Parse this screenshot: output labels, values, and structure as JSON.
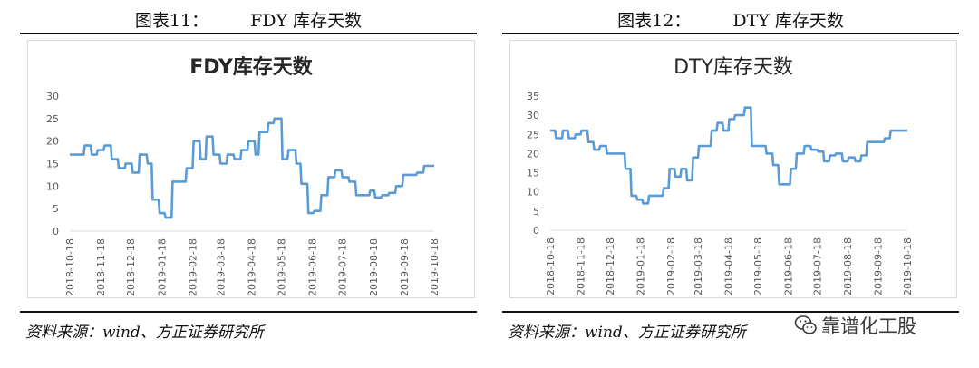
{
  "panels": [
    {
      "fig_label": "图表11：",
      "fig_name": "FDY 库存天数",
      "source": "资料来源：wind、方正证券研究所"
    },
    {
      "fig_label": "图表12：",
      "fig_name": "DTY 库存天数",
      "source": "资料来源：wind、方正证券研究所"
    }
  ],
  "watermark": {
    "text": "靠谱化工股",
    "icon": "wechat-icon"
  },
  "colors": {
    "line": "#5b9bd5",
    "axis_text": "#595959",
    "title": "#262626"
  },
  "chart_data": [
    {
      "type": "line",
      "title": "FDY库存天数",
      "title_bold": true,
      "xlabel": "",
      "ylabel": "",
      "ylim": [
        0,
        30
      ],
      "yticks": [
        0,
        5,
        10,
        15,
        20,
        25,
        30
      ],
      "grid": false,
      "legend": "none",
      "xticks": [
        "2018-10-18",
        "2018-11-18",
        "2018-12-18",
        "2019-01-18",
        "2019-02-18",
        "2019-03-18",
        "2019-04-18",
        "2019-05-18",
        "2019-06-18",
        "2019-07-18",
        "2019-08-18",
        "2019-09-18",
        "2019-10-18"
      ],
      "series": [
        {
          "points": [
            [
              "2018-10-18",
              17
            ],
            [
              "2018-11-01",
              17
            ],
            [
              "2018-11-02",
              19
            ],
            [
              "2018-11-08",
              19
            ],
            [
              "2018-11-09",
              17
            ],
            [
              "2018-11-14",
              17
            ],
            [
              "2018-11-15",
              18
            ],
            [
              "2018-11-21",
              18
            ],
            [
              "2018-11-22",
              19
            ],
            [
              "2018-11-28",
              19
            ],
            [
              "2018-11-29",
              16
            ],
            [
              "2018-12-05",
              16
            ],
            [
              "2018-12-06",
              14
            ],
            [
              "2018-12-12",
              14
            ],
            [
              "2018-12-13",
              15
            ],
            [
              "2018-12-19",
              15
            ],
            [
              "2018-12-20",
              13
            ],
            [
              "2018-12-26",
              13
            ],
            [
              "2018-12-27",
              17
            ],
            [
              "2019-01-03",
              17
            ],
            [
              "2019-01-04",
              15
            ],
            [
              "2019-01-08",
              15
            ],
            [
              "2019-01-09",
              7
            ],
            [
              "2019-01-15",
              7
            ],
            [
              "2019-01-16",
              4
            ],
            [
              "2019-01-21",
              4
            ],
            [
              "2019-01-22",
              3
            ],
            [
              "2019-01-28",
              3
            ],
            [
              "2019-01-29",
              11
            ],
            [
              "2019-02-11",
              11
            ],
            [
              "2019-02-12",
              14
            ],
            [
              "2019-02-18",
              14
            ],
            [
              "2019-02-19",
              20
            ],
            [
              "2019-02-25",
              20
            ],
            [
              "2019-02-26",
              16
            ],
            [
              "2019-03-03",
              16
            ],
            [
              "2019-03-04",
              21
            ],
            [
              "2019-03-10",
              21
            ],
            [
              "2019-03-11",
              17
            ],
            [
              "2019-03-17",
              17
            ],
            [
              "2019-03-18",
              15
            ],
            [
              "2019-03-24",
              15
            ],
            [
              "2019-03-25",
              17
            ],
            [
              "2019-03-31",
              17
            ],
            [
              "2019-04-01",
              16
            ],
            [
              "2019-04-07",
              16
            ],
            [
              "2019-04-08",
              18
            ],
            [
              "2019-04-14",
              18
            ],
            [
              "2019-04-15",
              20
            ],
            [
              "2019-04-21",
              20
            ],
            [
              "2019-04-22",
              17
            ],
            [
              "2019-04-25",
              17
            ],
            [
              "2019-04-26",
              22
            ],
            [
              "2019-05-04",
              22
            ],
            [
              "2019-05-05",
              24
            ],
            [
              "2019-05-10",
              24
            ],
            [
              "2019-05-11",
              25
            ],
            [
              "2019-05-18",
              25
            ],
            [
              "2019-05-19",
              16
            ],
            [
              "2019-05-24",
              16
            ],
            [
              "2019-05-25",
              18
            ],
            [
              "2019-06-01",
              18
            ],
            [
              "2019-06-02",
              15
            ],
            [
              "2019-06-06",
              15
            ],
            [
              "2019-06-07",
              10.5
            ],
            [
              "2019-06-13",
              10.5
            ],
            [
              "2019-06-14",
              4
            ],
            [
              "2019-06-19",
              4
            ],
            [
              "2019-06-20",
              4.5
            ],
            [
              "2019-06-26",
              4.5
            ],
            [
              "2019-06-27",
              8
            ],
            [
              "2019-07-03",
              8
            ],
            [
              "2019-07-04",
              12
            ],
            [
              "2019-07-10",
              12
            ],
            [
              "2019-07-11",
              13.5
            ],
            [
              "2019-07-17",
              13.5
            ],
            [
              "2019-07-18",
              12
            ],
            [
              "2019-07-24",
              12
            ],
            [
              "2019-07-25",
              11
            ],
            [
              "2019-07-31",
              11
            ],
            [
              "2019-08-01",
              8
            ],
            [
              "2019-08-14",
              8
            ],
            [
              "2019-08-15",
              9
            ],
            [
              "2019-08-19",
              9
            ],
            [
              "2019-08-20",
              7.5
            ],
            [
              "2019-08-26",
              7.5
            ],
            [
              "2019-08-27",
              8
            ],
            [
              "2019-09-02",
              8
            ],
            [
              "2019-09-03",
              8.5
            ],
            [
              "2019-09-09",
              8.5
            ],
            [
              "2019-09-10",
              10
            ],
            [
              "2019-09-16",
              10
            ],
            [
              "2019-09-17",
              12.5
            ],
            [
              "2019-09-30",
              12.5
            ],
            [
              "2019-10-01",
              13
            ],
            [
              "2019-10-07",
              13
            ],
            [
              "2019-10-08",
              14.5
            ],
            [
              "2019-10-18",
              14.5
            ]
          ]
        }
      ]
    },
    {
      "type": "line",
      "title": "DTY库存天数",
      "title_bold": false,
      "xlabel": "",
      "ylabel": "",
      "ylim": [
        0,
        35
      ],
      "yticks": [
        0,
        5,
        10,
        15,
        20,
        25,
        30,
        35
      ],
      "grid": false,
      "legend": "none",
      "xticks": [
        "2018-10-18",
        "2018-11-18",
        "2018-12-18",
        "2019-01-18",
        "2019-02-18",
        "2019-03-18",
        "2019-04-18",
        "2019-05-18",
        "2019-06-18",
        "2019-07-18",
        "2019-08-18",
        "2019-09-18",
        "2019-10-18"
      ],
      "series": [
        {
          "points": [
            [
              "2018-10-18",
              26
            ],
            [
              "2018-10-23",
              26
            ],
            [
              "2018-10-24",
              24
            ],
            [
              "2018-10-30",
              24
            ],
            [
              "2018-10-31",
              26
            ],
            [
              "2018-11-05",
              26
            ],
            [
              "2018-11-06",
              24
            ],
            [
              "2018-11-12",
              24
            ],
            [
              "2018-11-13",
              25
            ],
            [
              "2018-11-18",
              25
            ],
            [
              "2018-11-19",
              26
            ],
            [
              "2018-11-25",
              26
            ],
            [
              "2018-11-26",
              23
            ],
            [
              "2018-12-01",
              23
            ],
            [
              "2018-12-02",
              21
            ],
            [
              "2018-12-07",
              21
            ],
            [
              "2018-12-08",
              22
            ],
            [
              "2018-12-14",
              22
            ],
            [
              "2018-12-15",
              20
            ],
            [
              "2019-01-02",
              20
            ],
            [
              "2019-01-03",
              16
            ],
            [
              "2019-01-08",
              16
            ],
            [
              "2019-01-09",
              9
            ],
            [
              "2019-01-14",
              9
            ],
            [
              "2019-01-15",
              8
            ],
            [
              "2019-01-20",
              8
            ],
            [
              "2019-01-21",
              7
            ],
            [
              "2019-01-26",
              7
            ],
            [
              "2019-01-27",
              9
            ],
            [
              "2019-02-10",
              9
            ],
            [
              "2019-02-11",
              11
            ],
            [
              "2019-02-16",
              11
            ],
            [
              "2019-02-17",
              16
            ],
            [
              "2019-02-22",
              16
            ],
            [
              "2019-02-23",
              14
            ],
            [
              "2019-02-28",
              14
            ],
            [
              "2019-03-01",
              16
            ],
            [
              "2019-03-06",
              16
            ],
            [
              "2019-03-07",
              13
            ],
            [
              "2019-03-12",
              13
            ],
            [
              "2019-03-13",
              19
            ],
            [
              "2019-03-18",
              19
            ],
            [
              "2019-03-19",
              22
            ],
            [
              "2019-03-31",
              22
            ],
            [
              "2019-04-01",
              26
            ],
            [
              "2019-04-06",
              26
            ],
            [
              "2019-04-07",
              28
            ],
            [
              "2019-04-12",
              28
            ],
            [
              "2019-04-13",
              26
            ],
            [
              "2019-04-18",
              26
            ],
            [
              "2019-04-19",
              29
            ],
            [
              "2019-04-24",
              29
            ],
            [
              "2019-04-25",
              30
            ],
            [
              "2019-05-04",
              30
            ],
            [
              "2019-05-05",
              32
            ],
            [
              "2019-05-11",
              32
            ],
            [
              "2019-05-12",
              22
            ],
            [
              "2019-05-26",
              22
            ],
            [
              "2019-05-27",
              20
            ],
            [
              "2019-06-02",
              20
            ],
            [
              "2019-06-03",
              17
            ],
            [
              "2019-06-08",
              17
            ],
            [
              "2019-06-09",
              12
            ],
            [
              "2019-06-20",
              12
            ],
            [
              "2019-06-21",
              16
            ],
            [
              "2019-06-26",
              16
            ],
            [
              "2019-06-27",
              20
            ],
            [
              "2019-07-04",
              20
            ],
            [
              "2019-07-05",
              22
            ],
            [
              "2019-07-11",
              22
            ],
            [
              "2019-07-12",
              21
            ],
            [
              "2019-07-18",
              21
            ],
            [
              "2019-07-19",
              20.5
            ],
            [
              "2019-07-24",
              20.5
            ],
            [
              "2019-07-25",
              18
            ],
            [
              "2019-07-30",
              18
            ],
            [
              "2019-07-31",
              19.5
            ],
            [
              "2019-08-05",
              19.5
            ],
            [
              "2019-08-06",
              20
            ],
            [
              "2019-08-12",
              20
            ],
            [
              "2019-08-13",
              18
            ],
            [
              "2019-08-18",
              18
            ],
            [
              "2019-08-19",
              19
            ],
            [
              "2019-08-25",
              19
            ],
            [
              "2019-08-26",
              18
            ],
            [
              "2019-08-31",
              18
            ],
            [
              "2019-09-01",
              19.5
            ],
            [
              "2019-09-06",
              19.5
            ],
            [
              "2019-09-07",
              23
            ],
            [
              "2019-09-24",
              23
            ],
            [
              "2019-09-25",
              24
            ],
            [
              "2019-09-30",
              24
            ],
            [
              "2019-10-01",
              26
            ],
            [
              "2019-10-18",
              26
            ]
          ]
        }
      ]
    }
  ]
}
